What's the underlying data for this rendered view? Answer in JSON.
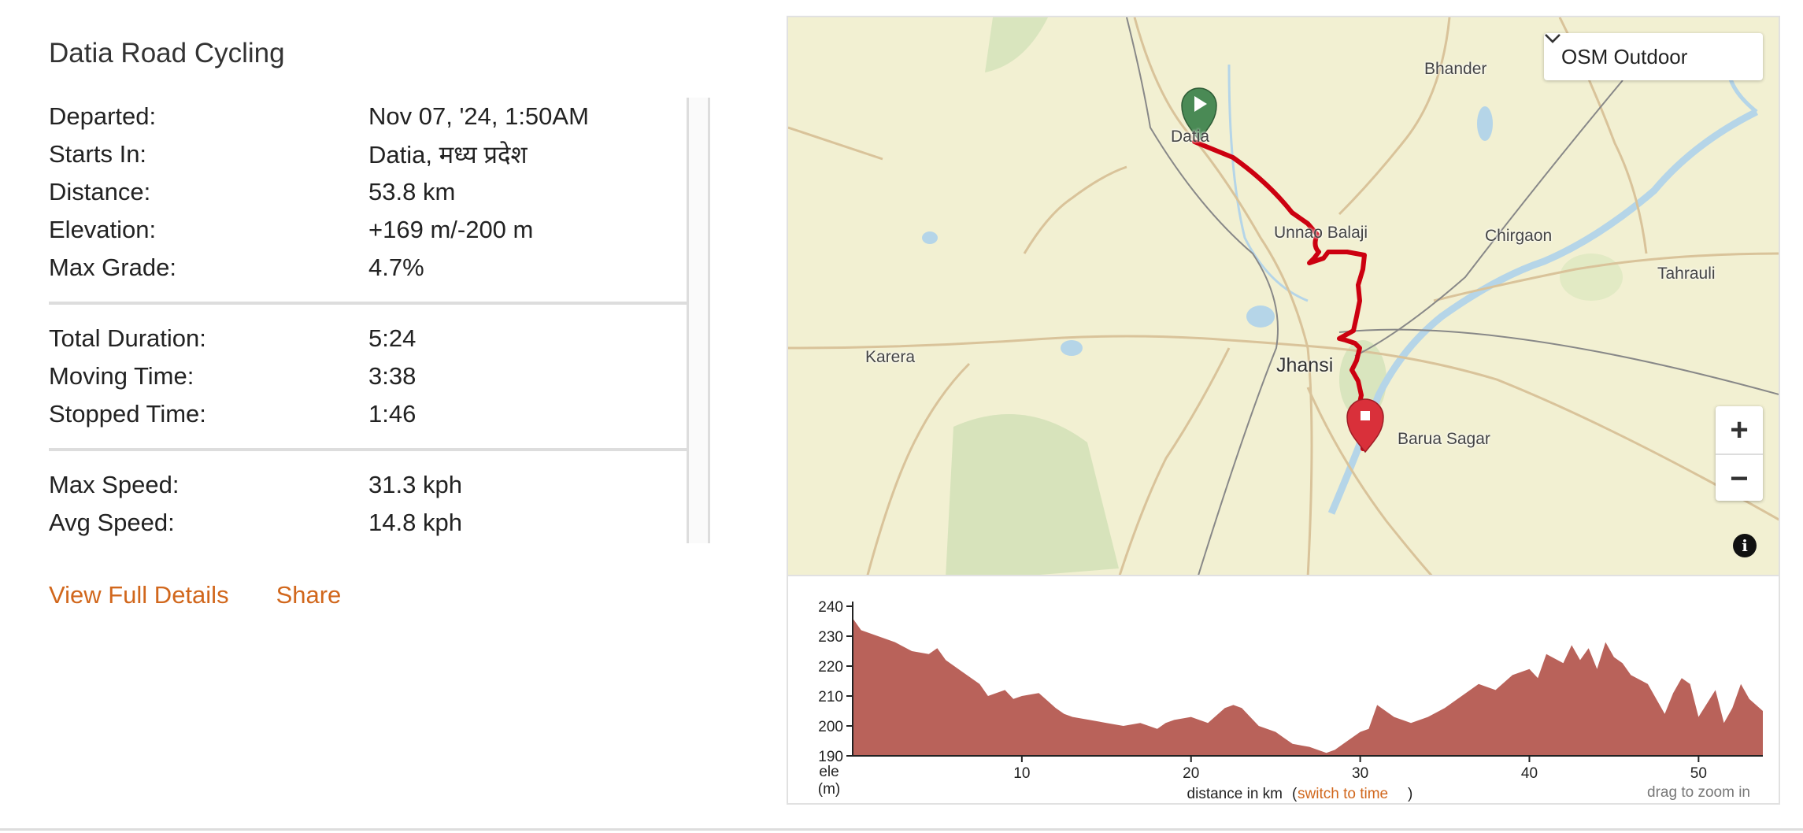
{
  "ride": {
    "title": "Datia Road Cycling"
  },
  "stats": {
    "group1": [
      {
        "label": "Departed:",
        "value": "Nov 07, '24, 1:50AM"
      },
      {
        "label": "Starts In:",
        "value": "Datia, मध्य प्रदेश"
      },
      {
        "label": "Distance:",
        "value": "53.8 km"
      },
      {
        "label": "Elevation:",
        "value": "+169 m/-200 m"
      },
      {
        "label": "Max Grade:",
        "value": "4.7%"
      }
    ],
    "group2": [
      {
        "label": "Total Duration:",
        "value": "5:24"
      },
      {
        "label": "Moving Time:",
        "value": "3:38"
      },
      {
        "label": "Stopped Time:",
        "value": "1:46"
      }
    ],
    "group3": [
      {
        "label": "Max Speed:",
        "value": "31.3 kph"
      },
      {
        "label": "Avg Speed:",
        "value": "14.8 kph"
      }
    ]
  },
  "links": {
    "view_full": "View Full Details",
    "share": "Share"
  },
  "map": {
    "layer": "OSM Outdoor",
    "places": {
      "bhander": "Bhander",
      "datia": "Datia",
      "unnao": "Unnao Balaji",
      "chirgaon": "Chirgaon",
      "tahrauli": "Tahrauli",
      "karera": "Karera",
      "jhansi": "Jhansi",
      "barua": "Barua Sagar"
    },
    "zoom_in": "+",
    "zoom_out": "−",
    "info": "i",
    "colors": {
      "route": "#cc0010",
      "start": "#4a8a55",
      "end": "#d9303a"
    }
  },
  "chart_data": {
    "type": "area",
    "title": "",
    "xlabel": "distance in km",
    "ylabel": "ele (m)",
    "ylabel_line1": "ele",
    "ylabel_line2": "(m)",
    "xlim": [
      0,
      53.8
    ],
    "ylim": [
      190,
      240
    ],
    "xticks": [
      10,
      20,
      30,
      40,
      50
    ],
    "yticks": [
      190,
      200,
      210,
      220,
      230,
      240
    ],
    "switch_text": "switch to time",
    "hint": "drag to zoom in",
    "fill_color": "#b9625a",
    "series": [
      {
        "x": [
          0,
          0.5,
          1.5,
          2.5,
          3.5,
          4.5,
          5,
          5.5,
          6.5,
          7.5,
          8,
          9,
          9.5,
          10,
          11,
          12,
          12.5,
          13,
          14,
          15,
          16,
          17,
          18,
          18.5,
          19,
          20,
          21,
          22,
          22.5,
          23,
          24,
          25,
          25.5,
          26,
          27,
          28,
          28.5,
          29,
          30,
          30.5,
          31,
          32,
          33,
          34,
          35,
          36,
          37,
          38,
          39,
          40,
          40.5,
          41,
          42,
          42.5,
          43,
          43.5,
          44,
          44.5,
          45,
          45.5,
          46,
          47,
          48,
          48.5,
          49,
          49.5,
          50,
          51,
          51.5,
          52,
          52.5,
          53,
          53.8
        ],
        "y": [
          236,
          232,
          230,
          228,
          225,
          224,
          226,
          222,
          218,
          214,
          210,
          212,
          209,
          210,
          211,
          206,
          204,
          203,
          202,
          201,
          200,
          201,
          199,
          201,
          202,
          203,
          201,
          206,
          207,
          206,
          200,
          198,
          196,
          194,
          193,
          191,
          192,
          194,
          198,
          199,
          207,
          203,
          201,
          203,
          206,
          210,
          214,
          212,
          217,
          219,
          216,
          224,
          221,
          227,
          222,
          226,
          219,
          228,
          223,
          221,
          217,
          214,
          204,
          211,
          216,
          214,
          203,
          212,
          201,
          206,
          214,
          209,
          205
        ]
      }
    ]
  }
}
